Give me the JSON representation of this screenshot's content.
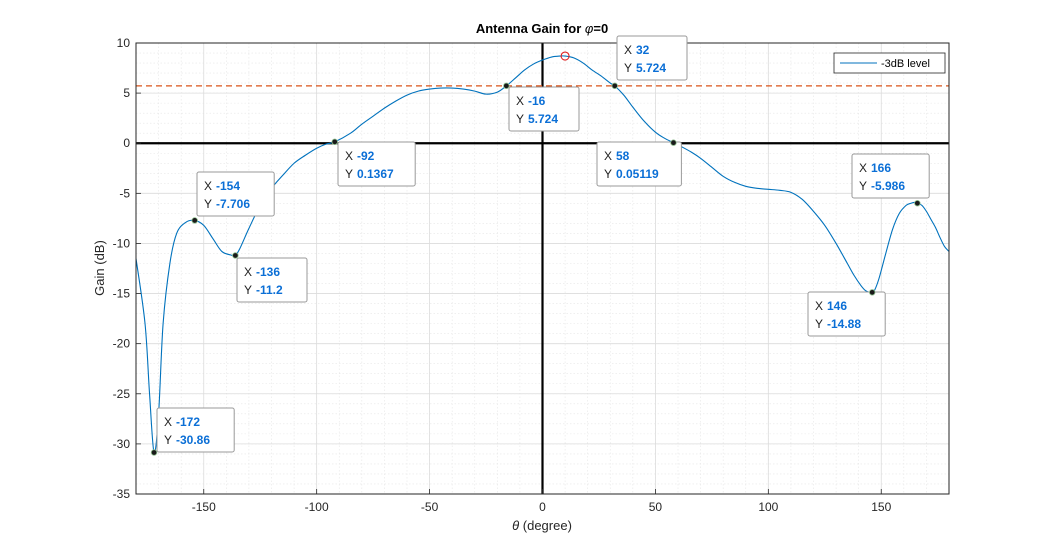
{
  "chart_data": {
    "type": "line",
    "title": "Antenna Gain for φ=0",
    "title_parts": {
      "prefix": "Antenna Gain for ",
      "symbol": "φ",
      "suffix": "=0"
    },
    "xlabel": "θ (degree)",
    "xlabel_parts": {
      "symbol": "θ",
      "suffix": " (degree)"
    },
    "ylabel": "Gain (dB)",
    "xlim": [
      -180,
      180
    ],
    "ylim": [
      -35,
      10
    ],
    "xticks": [
      -150,
      -100,
      -50,
      0,
      50,
      100,
      150
    ],
    "yticks": [
      10,
      5,
      0,
      -5,
      -10,
      -15,
      -20,
      -25,
      -30,
      -35
    ],
    "grid": "major and minor",
    "series_color": "#0072bd",
    "threshold_color": "#d95319",
    "threshold_level": 5.724,
    "max_marker": {
      "x": 10,
      "y": 8.7,
      "color": "#e02020"
    },
    "legend": {
      "label": "-3dB level",
      "location": "top-right"
    },
    "series": [
      {
        "x": [
          -180,
          -176,
          -174,
          -172,
          -170,
          -168,
          -165,
          -162,
          -158,
          -154,
          -150,
          -146,
          -142,
          -138,
          -136,
          -134,
          -130,
          -125,
          -120,
          -115,
          -110,
          -105,
          -100,
          -96,
          -92,
          -85,
          -80,
          -75,
          -70,
          -65,
          -60,
          -55,
          -50,
          -45,
          -40,
          -35,
          -30,
          -25,
          -20,
          -16,
          -12,
          -8,
          -4,
          0,
          4,
          8,
          10,
          14,
          18,
          22,
          26,
          30,
          32,
          36,
          40,
          45,
          50,
          54,
          58,
          62,
          66,
          70,
          75,
          80,
          85,
          90,
          95,
          100,
          105,
          110,
          115,
          120,
          125,
          130,
          135,
          138,
          141,
          143,
          145,
          146,
          147,
          149,
          152,
          155,
          158,
          161,
          163,
          165,
          166,
          168,
          170,
          172,
          174,
          176,
          178,
          180
        ],
        "y": [
          -11.5,
          -18,
          -25,
          -30.86,
          -27,
          -18,
          -12,
          -9,
          -7.9,
          -7.706,
          -8.2,
          -9.5,
          -10.8,
          -11.15,
          -11.2,
          -10.5,
          -8.5,
          -6.2,
          -4.5,
          -3.2,
          -2,
          -1.2,
          -0.5,
          -0.1,
          0.1367,
          1,
          1.9,
          2.7,
          3.5,
          4.2,
          4.8,
          5.2,
          5.4,
          5.5,
          5.5,
          5.4,
          5.2,
          4.9,
          5.1,
          5.724,
          6.5,
          7.3,
          7.9,
          8.3,
          8.6,
          8.7,
          8.7,
          8.5,
          8,
          7.3,
          6.7,
          6,
          5.724,
          4.8,
          3.6,
          2.2,
          1.1,
          0.5,
          0.05119,
          -0.4,
          -0.9,
          -1.5,
          -2.4,
          -3.3,
          -3.9,
          -4.3,
          -4.5,
          -4.6,
          -4.7,
          -4.9,
          -5.6,
          -6.8,
          -8.2,
          -10,
          -12,
          -13.2,
          -14.2,
          -14.7,
          -14.9,
          -14.88,
          -14.7,
          -13.5,
          -11,
          -8.6,
          -7,
          -6.2,
          -6,
          -5.9,
          -5.986,
          -6.2,
          -6.8,
          -7.6,
          -8.4,
          -9.4,
          -10.3,
          -10.8
        ]
      }
    ],
    "datatips": [
      {
        "x": -172,
        "y": -30.86,
        "x_label": "-172",
        "y_label": "-30.86"
      },
      {
        "x": -154,
        "y": -7.706,
        "x_label": "-154",
        "y_label": "-7.706"
      },
      {
        "x": -136,
        "y": -11.2,
        "x_label": "-136",
        "y_label": "-11.2"
      },
      {
        "x": -92,
        "y": 0.1367,
        "x_label": "-92",
        "y_label": "0.1367"
      },
      {
        "x": -16,
        "y": 5.724,
        "x_label": "-16",
        "y_label": "5.724"
      },
      {
        "x": 32,
        "y": 5.724,
        "x_label": "32",
        "y_label": "5.724"
      },
      {
        "x": 58,
        "y": 0.05119,
        "x_label": "58",
        "y_label": "0.05119"
      },
      {
        "x": 146,
        "y": -14.88,
        "x_label": "146",
        "y_label": "-14.88"
      },
      {
        "x": 166,
        "y": -5.986,
        "x_label": "166",
        "y_label": "-5.986"
      }
    ],
    "datatip_keys": {
      "x": "X",
      "y": "Y"
    }
  }
}
